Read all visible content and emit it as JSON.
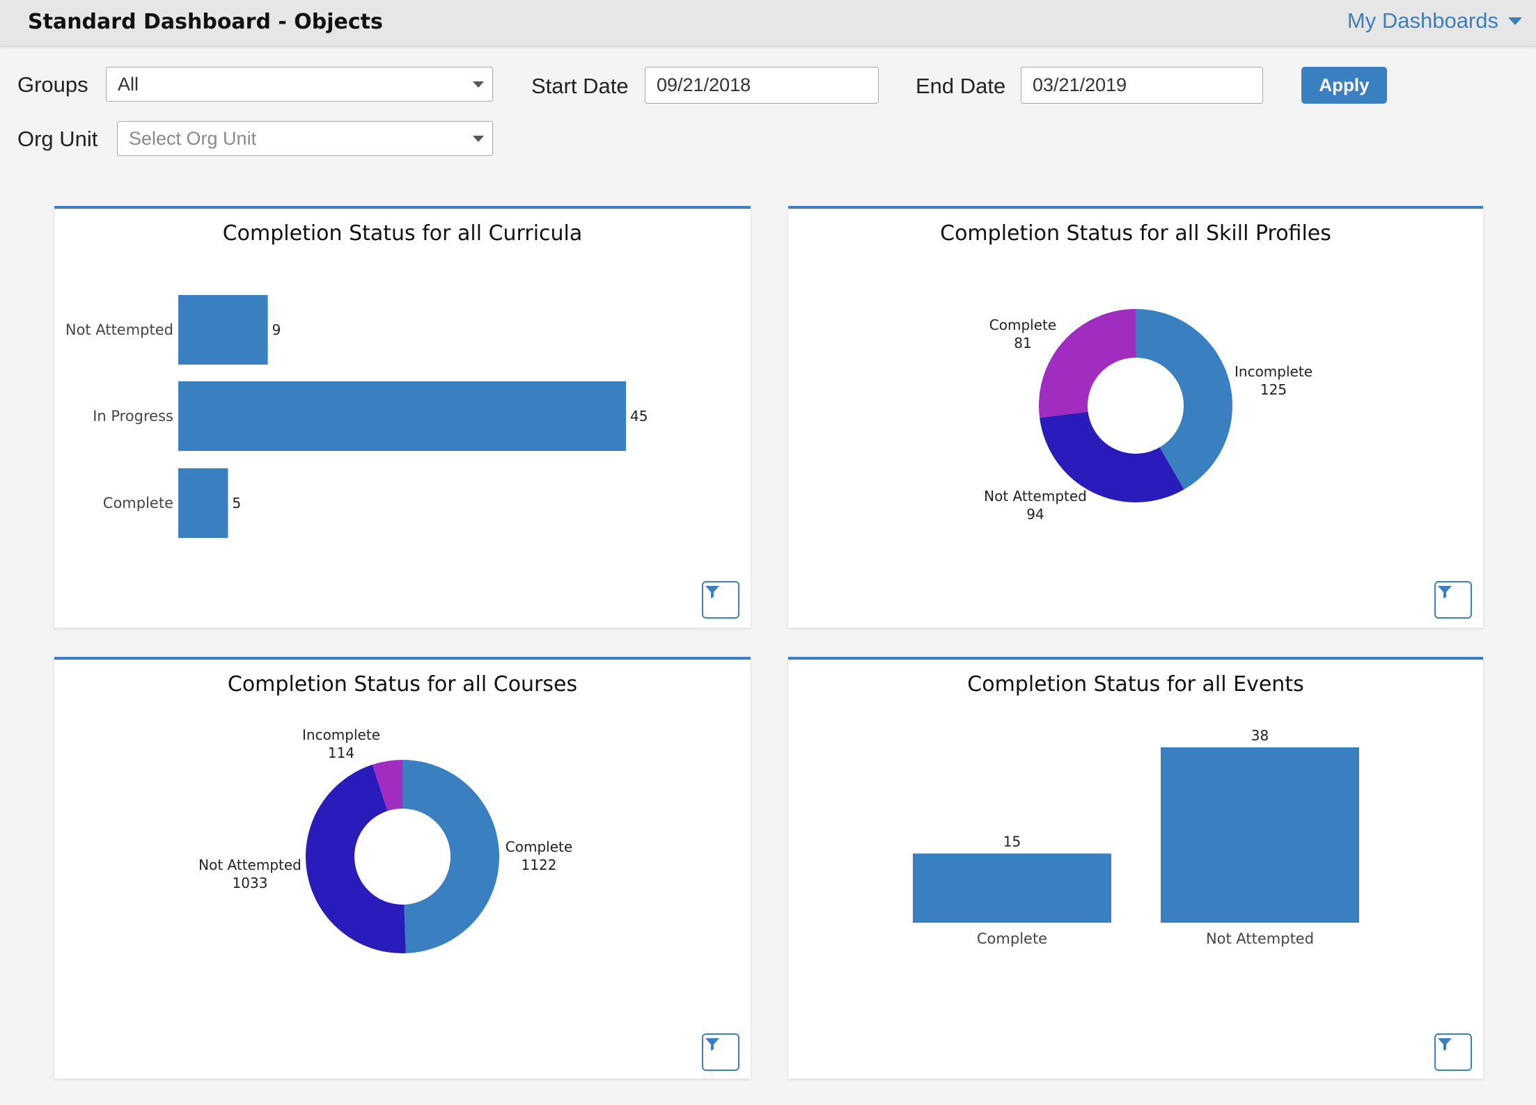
{
  "header": {
    "title": "Standard Dashboard - Objects",
    "my_dashboards_label": "My Dashboards"
  },
  "filters": {
    "groups_label": "Groups",
    "groups_value": "All",
    "org_unit_label": "Org Unit",
    "org_unit_placeholder": "Select Org Unit",
    "start_date_label": "Start Date",
    "start_date_value": "09/21/2018",
    "end_date_label": "End Date",
    "end_date_value": "03/21/2019",
    "apply_label": "Apply"
  },
  "colors": {
    "bar_blue": "#3a7fc0",
    "dark_blue": "#2a1cba",
    "purple": "#a02cc0"
  },
  "icons": {
    "filter": "funnel-icon",
    "dropdown": "chevron-down-icon"
  },
  "chart_data": [
    {
      "id": "curricula",
      "type": "bar",
      "orientation": "horizontal",
      "title": "Completion Status for all Curricula",
      "categories": [
        "Not Attempted",
        "In Progress",
        "Complete"
      ],
      "values": [
        9,
        45,
        5
      ],
      "xlim": [
        0,
        50
      ]
    },
    {
      "id": "skill_profiles",
      "type": "pie",
      "donut": true,
      "title": "Completion Status for all Skill Profiles",
      "labels": [
        "Incomplete",
        "Not Attempted",
        "Complete"
      ],
      "values": [
        125,
        94,
        81
      ],
      "colors": [
        "#3a7fc0",
        "#2a1cba",
        "#a02cc0"
      ]
    },
    {
      "id": "courses",
      "type": "pie",
      "donut": true,
      "title": "Completion Status for all Courses",
      "labels": [
        "Complete",
        "Not Attempted",
        "Incomplete"
      ],
      "values": [
        1122,
        1033,
        114
      ],
      "colors": [
        "#3a7fc0",
        "#2a1cba",
        "#a02cc0"
      ]
    },
    {
      "id": "events",
      "type": "bar",
      "orientation": "vertical",
      "title": "Completion Status for all Events",
      "categories": [
        "Complete",
        "Not Attempted"
      ],
      "values": [
        15,
        38
      ],
      "ylim": [
        0,
        38
      ]
    }
  ]
}
